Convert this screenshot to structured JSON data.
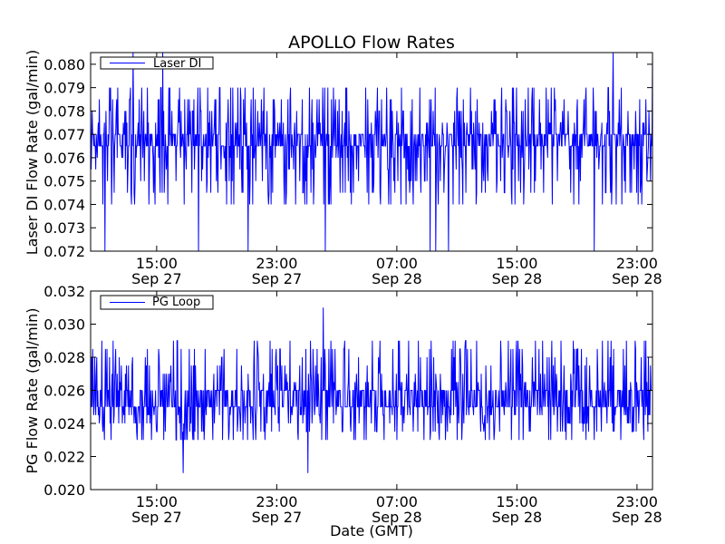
{
  "figure": {
    "title": "APOLLO Flow Rates",
    "xlabel": "Date (GMT)"
  },
  "chart_data": [
    {
      "type": "line",
      "title": "APOLLO Flow Rates",
      "xlabel": "",
      "ylabel": "Laser DI Flow Rate (gal/min)",
      "xlim": [
        "2012-09-27 10:36",
        "2012-09-29 00:02"
      ],
      "ylim": [
        0.072,
        0.0805
      ],
      "yticks": [
        "0.072",
        "0.073",
        "0.074",
        "0.075",
        "0.076",
        "0.077",
        "0.078",
        "0.079",
        "0.080"
      ],
      "xticks": [
        {
          "time": "15:00",
          "date": "Sep 27"
        },
        {
          "time": "23:00",
          "date": "Sep 27"
        },
        {
          "time": "07:00",
          "date": "Sep 28"
        },
        {
          "time": "15:00",
          "date": "Sep 28"
        },
        {
          "time": "23:00",
          "date": "Sep 28"
        }
      ],
      "legend_location": "upper-left",
      "grid": false,
      "series": [
        {
          "name": "Laser DI",
          "color": "#0000ff",
          "resolution": 0.0005,
          "baseline_low": 0.0765,
          "baseline_high": 0.077,
          "typical_range": [
            0.074,
            0.079
          ],
          "max": 0.0805,
          "min": 0.072
        }
      ]
    },
    {
      "type": "line",
      "title": "",
      "xlabel": "Date (GMT)",
      "ylabel": "PG Flow Rate (gal/min)",
      "xlim": [
        "2012-09-27 10:36",
        "2012-09-29 00:02"
      ],
      "ylim": [
        0.02,
        0.032
      ],
      "yticks": [
        "0.020",
        "0.022",
        "0.024",
        "0.026",
        "0.028",
        "0.030",
        "0.032"
      ],
      "xticks": [
        {
          "time": "15:00",
          "date": "Sep 27"
        },
        {
          "time": "23:00",
          "date": "Sep 27"
        },
        {
          "time": "07:00",
          "date": "Sep 28"
        },
        {
          "time": "15:00",
          "date": "Sep 28"
        },
        {
          "time": "23:00",
          "date": "Sep 28"
        }
      ],
      "legend_location": "upper-left",
      "grid": false,
      "series": [
        {
          "name": "PG Loop",
          "color": "#0000ff",
          "resolution": 0.0005,
          "baseline_low": 0.025,
          "baseline_high": 0.026,
          "typical_range": [
            0.023,
            0.029
          ],
          "max": 0.031,
          "min": 0.021
        }
      ]
    }
  ]
}
